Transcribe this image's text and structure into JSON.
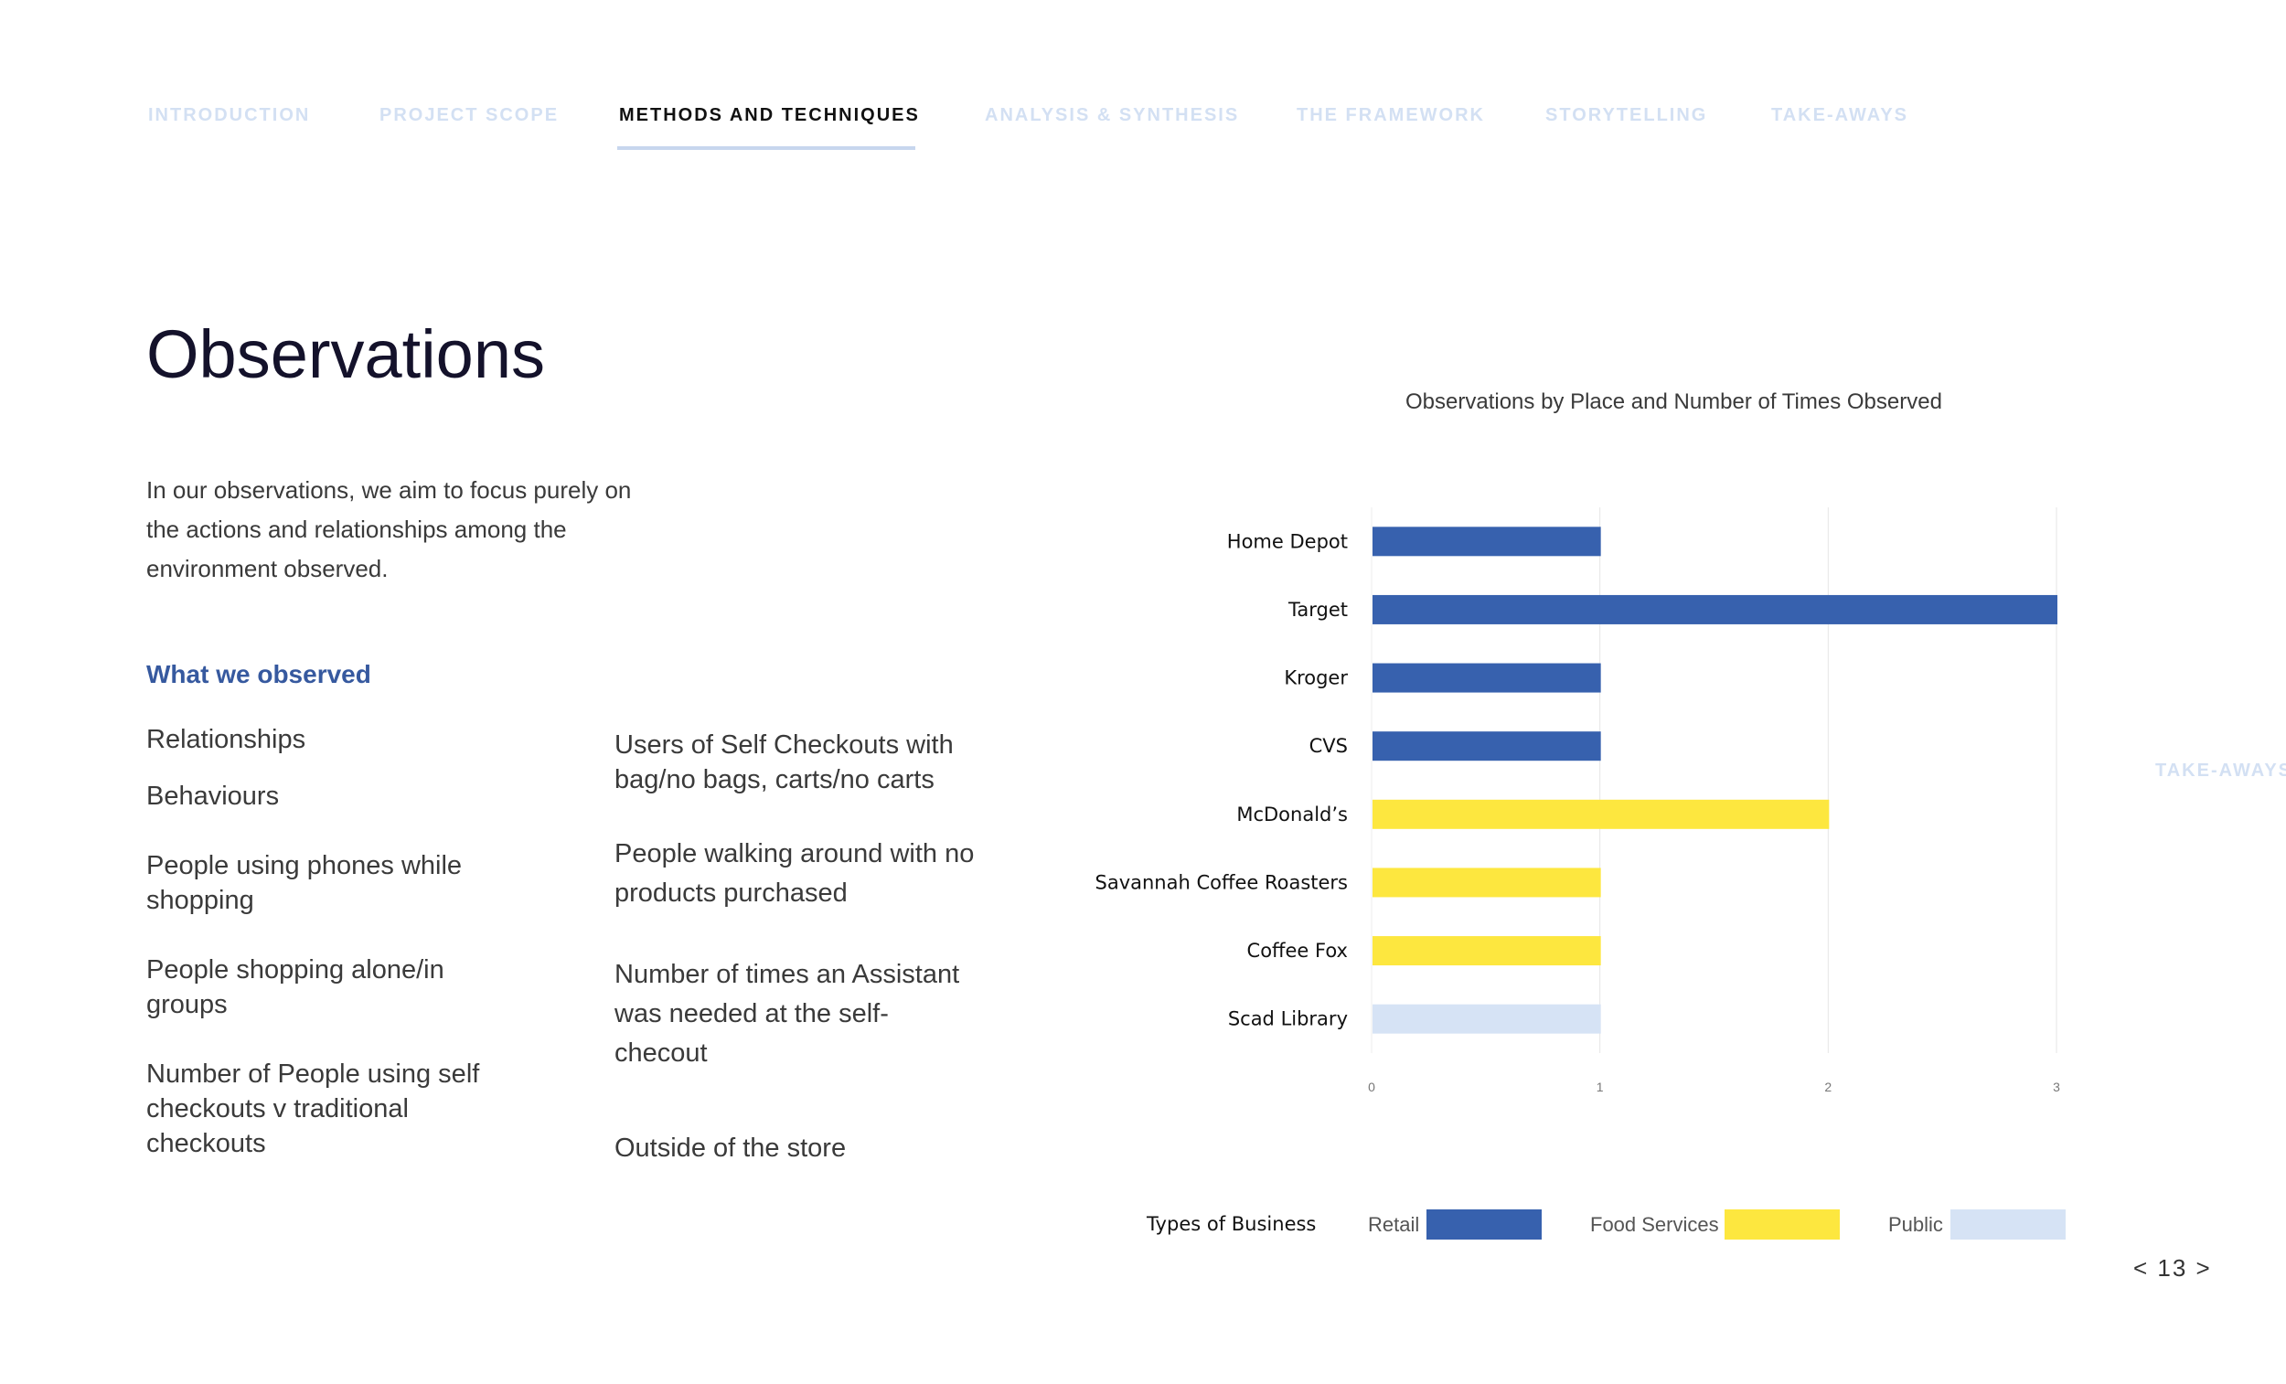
{
  "nav": {
    "items": [
      {
        "label": "INTRODUCTION"
      },
      {
        "label": "PROJECT SCOPE"
      },
      {
        "label": "METHODS AND TECHNIQUES"
      },
      {
        "label": "ANALYSIS & SYNTHESIS"
      },
      {
        "label": "THE FRAMEWORK"
      },
      {
        "label": "STORYTELLING"
      },
      {
        "label": "TAKE-AWAYS"
      }
    ],
    "active_index": 2,
    "side_tab": "TAKE-AWAYS"
  },
  "colors": {
    "nav_inactive": "#d3e0f3",
    "nav_active": "#111111",
    "heading_accent": "#36599f",
    "retail": "#3761ae",
    "food_services": "#fde73f",
    "public": "#d6e3f5"
  },
  "page": {
    "title": "Observations",
    "intro": "In our observations, we aim to focus purely on the actions and relationships among the environment observed.",
    "section_heading": "What we observed",
    "observations_left": [
      "Relationships",
      "Behaviours",
      "People using phones while shopping",
      "People shopping alone/in groups",
      "Number of People using self checkouts v traditional checkouts"
    ],
    "observations_right": [
      "Users of Self Checkouts with bag/no bags, carts/no carts",
      "People walking around with no products purchased",
      "Number of times an Assistant was needed at the self-checout",
      "Outside of the store"
    ],
    "page_number": "< 13 >"
  },
  "chart_data": {
    "type": "bar",
    "orientation": "horizontal",
    "title": "Observations by Place and Number of Times Observed",
    "categories": [
      "Home Depot",
      "Target",
      "Kroger",
      "CVS",
      "McDonald’s",
      "Savannah Coffee Roasters",
      "Coffee Fox",
      "Scad Library"
    ],
    "values": [
      1,
      3,
      1,
      1,
      2,
      1,
      1,
      1
    ],
    "category_type": [
      "Retail",
      "Retail",
      "Retail",
      "Retail",
      "Food Services",
      "Food Services",
      "Food Services",
      "Public"
    ],
    "xlim": [
      0,
      3
    ],
    "x_ticks": [
      "0",
      "1",
      "2",
      "3"
    ],
    "grid": true,
    "legend": {
      "title": "Types of Business",
      "placement": "bottom",
      "entries": [
        {
          "name": "Retail",
          "color": "#3761ae"
        },
        {
          "name": "Food Services",
          "color": "#fde73f"
        },
        {
          "name": "Public",
          "color": "#d6e3f5"
        }
      ]
    }
  }
}
